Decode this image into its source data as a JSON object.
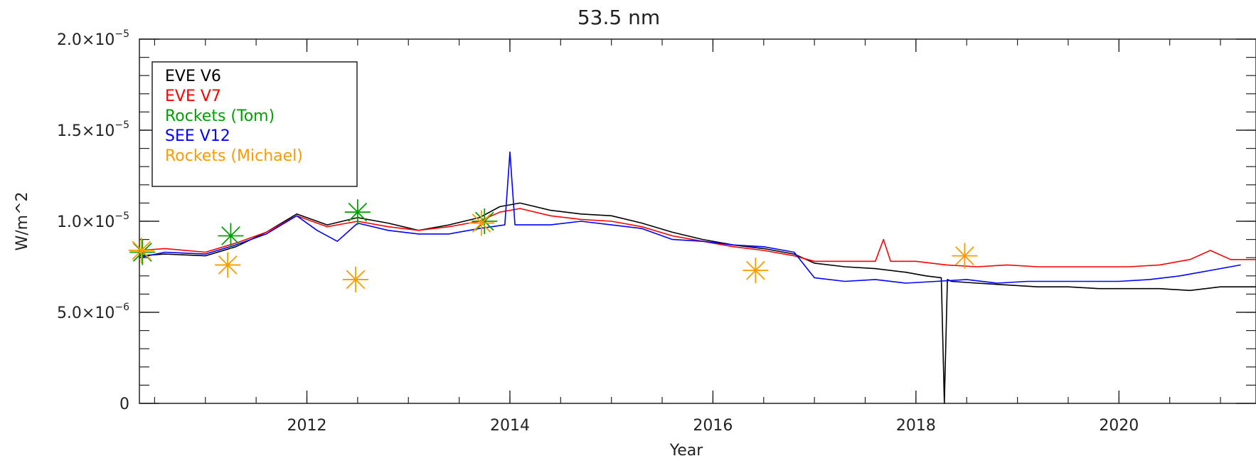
{
  "chart_data": {
    "type": "line",
    "title": "53.5 nm",
    "xlabel": "Year",
    "ylabel": "W/m^2",
    "xlim": [
      2010.35,
      2021.35
    ],
    "ylim": [
      0,
      2e-05
    ],
    "x_ticks": [
      {
        "value": 2012,
        "label": "2012"
      },
      {
        "value": 2014,
        "label": "2014"
      },
      {
        "value": 2016,
        "label": "2016"
      },
      {
        "value": 2018,
        "label": "2018"
      },
      {
        "value": 2020,
        "label": "2020"
      }
    ],
    "y_ticks": [
      {
        "value": 0,
        "label": "0"
      },
      {
        "value": 5e-06,
        "label": "5.0×10",
        "exp": "−6"
      },
      {
        "value": 1e-05,
        "label": "1.0×10",
        "exp": "−5"
      },
      {
        "value": 1.5e-05,
        "label": "1.5×10",
        "exp": "−5"
      },
      {
        "value": 2e-05,
        "label": "2.0×10",
        "exp": "−5"
      }
    ],
    "grid": false,
    "legend_position": "top-left",
    "series": [
      {
        "name": "EVE V6",
        "color": "#000000",
        "kind": "line",
        "x": [
          2010.35,
          2010.6,
          2011.0,
          2011.3,
          2011.6,
          2011.9,
          2012.2,
          2012.5,
          2012.8,
          2013.1,
          2013.4,
          2013.7,
          2013.9,
          2014.1,
          2014.4,
          2014.7,
          2015.0,
          2015.3,
          2015.6,
          2015.9,
          2016.2,
          2016.5,
          2016.8,
          2017.0,
          2017.3,
          2017.6,
          2017.9,
          2018.1,
          2018.25,
          2018.28,
          2018.31,
          2018.35,
          2018.6,
          2018.9,
          2019.2,
          2019.5,
          2019.8,
          2020.1,
          2020.4,
          2020.7,
          2021.0,
          2021.35
        ],
        "y": [
          8.1e-06,
          8.2e-06,
          8.1e-06,
          8.6e-06,
          9.4e-06,
          1.04e-05,
          9.8e-06,
          1.02e-05,
          9.9e-06,
          9.5e-06,
          9.8e-06,
          1.02e-05,
          1.08e-05,
          1.1e-05,
          1.06e-05,
          1.04e-05,
          1.03e-05,
          9.9e-06,
          9.4e-06,
          9e-06,
          8.7e-06,
          8.5e-06,
          8.2e-06,
          7.7e-06,
          7.5e-06,
          7.4e-06,
          7.2e-06,
          7e-06,
          6.9e-06,
          0.0,
          6.8e-06,
          6.7e-06,
          6.6e-06,
          6.5e-06,
          6.4e-06,
          6.4e-06,
          6.3e-06,
          6.3e-06,
          6.3e-06,
          6.2e-06,
          6.4e-06,
          6.4e-06
        ]
      },
      {
        "name": "EVE V7",
        "color": "#ff0000",
        "kind": "line",
        "x": [
          2010.35,
          2010.6,
          2011.0,
          2011.3,
          2011.6,
          2011.9,
          2012.2,
          2012.5,
          2012.8,
          2013.1,
          2013.4,
          2013.7,
          2013.9,
          2014.1,
          2014.4,
          2014.7,
          2015.0,
          2015.3,
          2015.6,
          2015.9,
          2016.2,
          2016.5,
          2016.8,
          2017.0,
          2017.3,
          2017.6,
          2017.68,
          2017.75,
          2018.0,
          2018.3,
          2018.6,
          2018.9,
          2019.2,
          2019.5,
          2019.8,
          2020.1,
          2020.4,
          2020.7,
          2020.9,
          2021.1,
          2021.35
        ],
        "y": [
          8.4e-06,
          8.5e-06,
          8.3e-06,
          8.8e-06,
          9.4e-06,
          1.03e-05,
          9.7e-06,
          1e-05,
          9.7e-06,
          9.5e-06,
          9.7e-06,
          1e-05,
          1.05e-05,
          1.07e-05,
          1.03e-05,
          1.01e-05,
          1e-05,
          9.7e-06,
          9.2e-06,
          8.9e-06,
          8.6e-06,
          8.4e-06,
          8.1e-06,
          7.8e-06,
          7.8e-06,
          7.8e-06,
          9e-06,
          7.8e-06,
          7.8e-06,
          7.6e-06,
          7.5e-06,
          7.6e-06,
          7.5e-06,
          7.5e-06,
          7.5e-06,
          7.5e-06,
          7.6e-06,
          7.9e-06,
          8.4e-06,
          7.9e-06,
          7.9e-06
        ]
      },
      {
        "name": "Rockets (Tom)",
        "color": "#00a000",
        "kind": "marker",
        "x": [
          2010.38,
          2011.25,
          2012.5,
          2013.75
        ],
        "y": [
          8.3e-06,
          9.2e-06,
          1.05e-05,
          1e-05
        ]
      },
      {
        "name": "SEE V12",
        "color": "#0000ff",
        "kind": "line",
        "x": [
          2010.35,
          2010.6,
          2011.0,
          2011.3,
          2011.6,
          2011.9,
          2012.1,
          2012.3,
          2012.5,
          2012.8,
          2013.1,
          2013.4,
          2013.7,
          2013.95,
          2014.0,
          2014.05,
          2014.4,
          2014.7,
          2015.0,
          2015.3,
          2015.6,
          2015.9,
          2016.2,
          2016.5,
          2016.8,
          2017.0,
          2017.3,
          2017.6,
          2017.9,
          2018.2,
          2018.5,
          2018.8,
          2019.1,
          2019.4,
          2019.7,
          2020.0,
          2020.3,
          2020.6,
          2020.9,
          2021.2
        ],
        "y": [
          8e-06,
          8.3e-06,
          8.2e-06,
          8.7e-06,
          9.3e-06,
          1.03e-05,
          9.5e-06,
          8.9e-06,
          9.9e-06,
          9.5e-06,
          9.3e-06,
          9.3e-06,
          9.6e-06,
          9.8e-06,
          1.38e-05,
          9.8e-06,
          9.8e-06,
          1e-05,
          9.8e-06,
          9.6e-06,
          9e-06,
          8.9e-06,
          8.7e-06,
          8.6e-06,
          8.3e-06,
          6.9e-06,
          6.7e-06,
          6.8e-06,
          6.6e-06,
          6.7e-06,
          6.8e-06,
          6.6e-06,
          6.7e-06,
          6.7e-06,
          6.7e-06,
          6.7e-06,
          6.8e-06,
          7e-06,
          7.3e-06,
          7.6e-06
        ]
      },
      {
        "name": "Rockets (Michael)",
        "color": "#ff9900",
        "kind": "marker",
        "x": [
          2010.37,
          2011.22,
          2012.48,
          2013.72,
          2016.42,
          2018.48
        ],
        "y": [
          8.4e-06,
          7.6e-06,
          6.8e-06,
          9.9e-06,
          7.3e-06,
          8.1e-06
        ]
      }
    ]
  }
}
